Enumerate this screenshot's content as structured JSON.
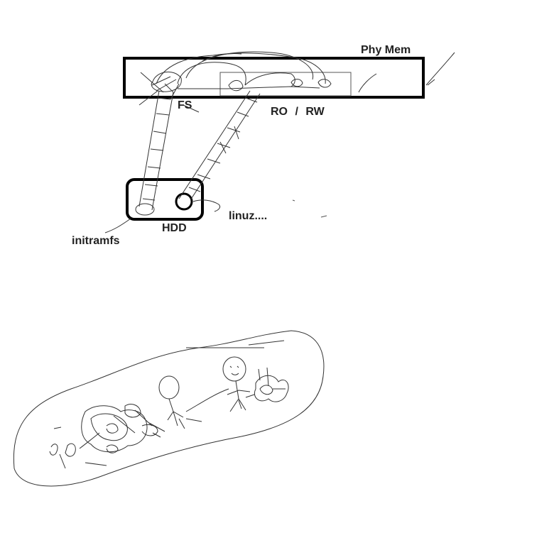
{
  "diagram": {
    "labels": {
      "phy_mem": "Phy Mem",
      "fs": "FS",
      "ro_rw": "RO  /  RW",
      "linuz": "linuz....",
      "hdd": "HDD",
      "initramfs": "initramfs"
    },
    "colors": {
      "bold_stroke": "#000000",
      "thin_stroke": "#333333",
      "text": "#222222",
      "background": "#ffffff"
    }
  }
}
